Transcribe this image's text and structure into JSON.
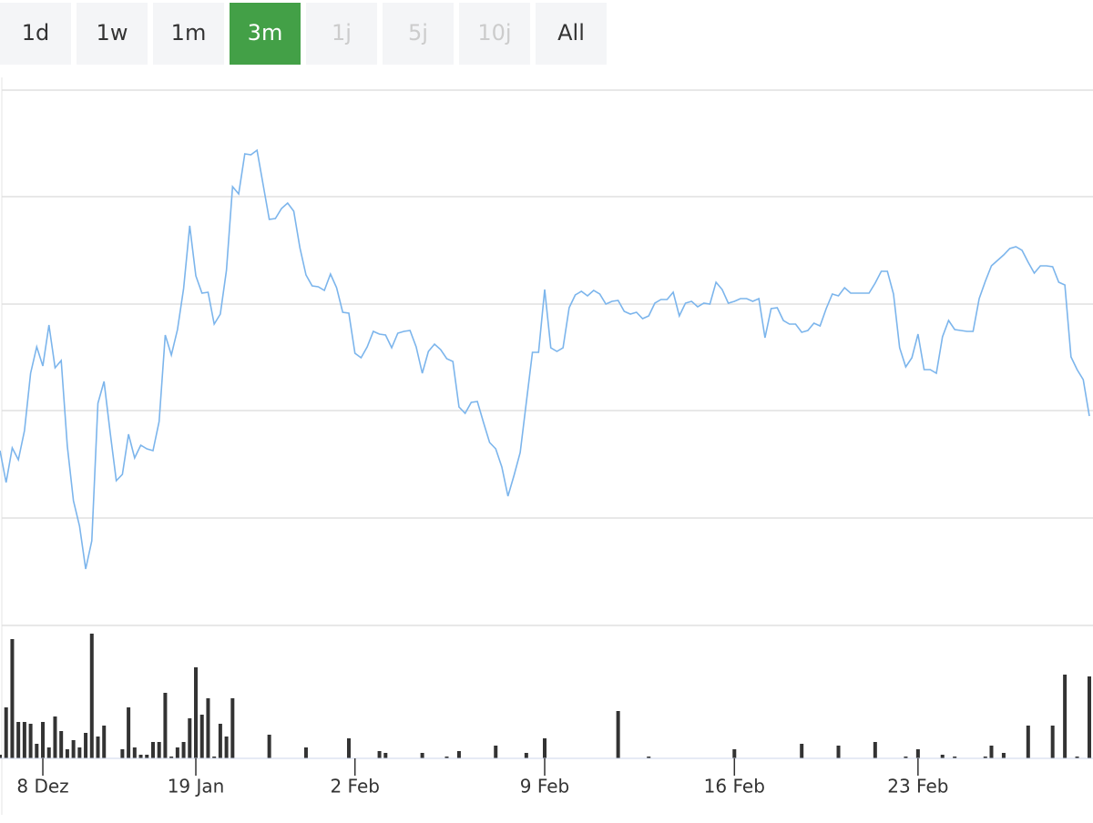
{
  "range_selector": {
    "buttons": [
      {
        "label": "1d"
      },
      {
        "label": "1w"
      },
      {
        "label": "1m"
      },
      {
        "label": "3m",
        "selected": true
      },
      {
        "label": "1j",
        "disabled": true
      },
      {
        "label": "5j",
        "disabled": true
      },
      {
        "label": "10j",
        "disabled": true
      },
      {
        "label": "All"
      }
    ]
  },
  "chart_data": [
    {
      "type": "line",
      "color": "#7cb5ec",
      "grid": true,
      "xlim": [
        0,
        178
      ],
      "ylim": [
        0,
        588
      ],
      "yticks": [
        0,
        118,
        236,
        353,
        471,
        588
      ],
      "values": [
        192,
        157,
        195,
        182,
        214,
        277,
        306,
        285,
        330,
        283,
        291,
        197,
        137,
        109,
        62,
        93,
        244,
        268,
        212,
        159,
        166,
        210,
        184,
        198,
        194,
        192,
        224,
        319,
        297,
        325,
        370,
        439,
        384,
        365,
        366,
        331,
        342,
        390,
        482,
        474,
        518,
        517,
        522,
        484,
        446,
        447,
        458,
        464,
        455,
        415,
        385,
        373,
        372,
        368,
        386,
        371,
        344,
        343,
        299,
        294,
        306,
        323,
        320,
        319,
        305,
        321,
        323,
        324,
        306,
        277,
        301,
        309,
        303,
        293,
        290,
        240,
        233,
        245,
        246,
        223,
        201,
        194,
        174,
        142,
        165,
        190,
        245,
        300,
        300,
        369,
        305,
        301,
        305,
        349,
        363,
        367,
        362,
        368,
        364,
        353,
        356,
        357,
        345,
        342,
        344,
        337,
        340,
        354,
        358,
        358,
        366,
        340,
        354,
        356,
        350,
        354,
        353,
        377,
        369,
        354,
        356,
        359,
        359,
        356,
        359,
        316,
        348,
        349,
        335,
        331,
        331,
        322,
        324,
        332,
        329,
        348,
        364,
        362,
        371,
        365,
        365,
        365,
        365,
        376,
        389,
        389,
        364,
        305,
        284,
        294,
        320,
        281,
        281,
        277,
        317,
        335,
        325,
        324,
        323,
        323,
        359,
        378,
        395,
        401,
        407,
        414,
        416,
        412,
        399,
        387,
        395,
        395,
        394,
        377,
        374,
        295,
        281,
        270,
        230
      ]
    },
    {
      "type": "bar",
      "color": "#333333",
      "xlim": [
        0,
        178
      ],
      "ylim": [
        0,
        140
      ],
      "xticks": [
        {
          "value": 7,
          "label": "8 Dez"
        },
        {
          "value": 32,
          "label": "19 Jan"
        },
        {
          "value": 58,
          "label": "2 Feb"
        },
        {
          "value": 89,
          "label": "9 Feb"
        },
        {
          "value": 120,
          "label": "16 Feb"
        },
        {
          "value": 150,
          "label": "23 Feb"
        }
      ],
      "values": [
        4,
        56,
        131,
        40,
        40,
        38,
        16,
        40,
        12,
        46,
        30,
        10,
        20,
        12,
        28,
        137,
        24,
        36,
        0,
        0,
        10,
        56,
        12,
        4,
        4,
        18,
        18,
        72,
        2,
        12,
        18,
        44,
        100,
        48,
        66,
        2,
        38,
        24,
        66,
        0,
        0,
        0,
        0,
        0,
        26,
        0,
        0,
        0,
        0,
        0,
        12,
        0,
        0,
        0,
        0,
        0,
        0,
        22,
        0,
        0,
        0,
        0,
        8,
        6,
        0,
        0,
        0,
        0,
        0,
        6,
        0,
        0,
        0,
        2,
        0,
        8,
        0,
        0,
        0,
        0,
        0,
        14,
        0,
        0,
        0,
        0,
        6,
        0,
        0,
        22,
        0,
        0,
        0,
        0,
        0,
        0,
        0,
        0,
        0,
        0,
        0,
        52,
        0,
        0,
        0,
        0,
        2,
        0,
        0,
        0,
        0,
        0,
        0,
        0,
        0,
        0,
        0,
        0,
        0,
        0,
        10,
        0,
        0,
        0,
        0,
        0,
        0,
        0,
        0,
        0,
        0,
        16,
        0,
        0,
        0,
        0,
        0,
        14,
        0,
        0,
        0,
        0,
        0,
        18,
        0,
        0,
        0,
        0,
        2,
        0,
        10,
        0,
        0,
        0,
        4,
        0,
        2,
        0,
        0,
        0,
        0,
        2,
        14,
        0,
        6,
        0,
        0,
        0,
        36,
        0,
        0,
        0,
        36,
        0,
        92,
        0,
        2,
        0,
        90
      ]
    }
  ]
}
